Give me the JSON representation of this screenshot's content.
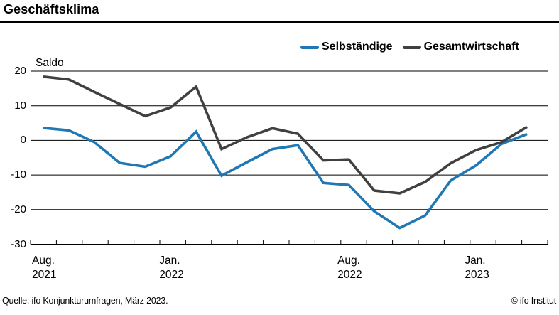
{
  "header": {
    "title": "Geschäftsklima"
  },
  "y_axis_title": "Saldo",
  "footer": {
    "source": "Quelle: ifo Konjunkturumfragen, März 2023.",
    "copyright": "© ifo Institut"
  },
  "chart_data": {
    "type": "line",
    "title": "Geschäftsklima",
    "ylabel": "Saldo",
    "ylim": [
      -30,
      20
    ],
    "yticks": [
      20,
      10,
      0,
      -10,
      -20,
      -30
    ],
    "grid": "horizontal-on",
    "legend_position": "top-right",
    "categories": [
      "Aug. 2021",
      "Sep. 2021",
      "Okt. 2021",
      "Nov. 2021",
      "Dez. 2021",
      "Jan. 2022",
      "Feb. 2022",
      "Mär. 2022",
      "Apr. 2022",
      "Mai 2022",
      "Jun. 2022",
      "Jul. 2022",
      "Aug. 2022",
      "Sep. 2022",
      "Okt. 2022",
      "Nov. 2022",
      "Dez. 2022",
      "Jan. 2023",
      "Feb. 2023",
      "Mär. 2023"
    ],
    "x_axis_labels": [
      {
        "index": 0,
        "line1": "Aug.",
        "line2": "2021"
      },
      {
        "index": 5,
        "line1": "Jan.",
        "line2": "2022"
      },
      {
        "index": 12,
        "line1": "Aug.",
        "line2": "2022"
      },
      {
        "index": 17,
        "line1": "Jan.",
        "line2": "2023"
      }
    ],
    "series": [
      {
        "name": "Selbständige",
        "color": "#1f77b4",
        "values": [
          3.6,
          2.9,
          -0.5,
          -6.5,
          -7.6,
          -4.6,
          2.5,
          -10.2,
          -6.3,
          -2.5,
          -1.4,
          -12.3,
          -12.9,
          -20.5,
          -25.3,
          -21.7,
          -11.6,
          -7.2,
          -1.0,
          1.8
        ]
      },
      {
        "name": "Gesamtwirtschaft",
        "color": "#404040",
        "values": [
          18.4,
          17.6,
          14.0,
          10.5,
          7.0,
          9.5,
          15.5,
          -2.5,
          0.9,
          3.5,
          1.9,
          -5.8,
          -5.5,
          -14.5,
          -15.3,
          -12.0,
          -6.6,
          -2.8,
          -0.5,
          3.9
        ]
      }
    ]
  }
}
